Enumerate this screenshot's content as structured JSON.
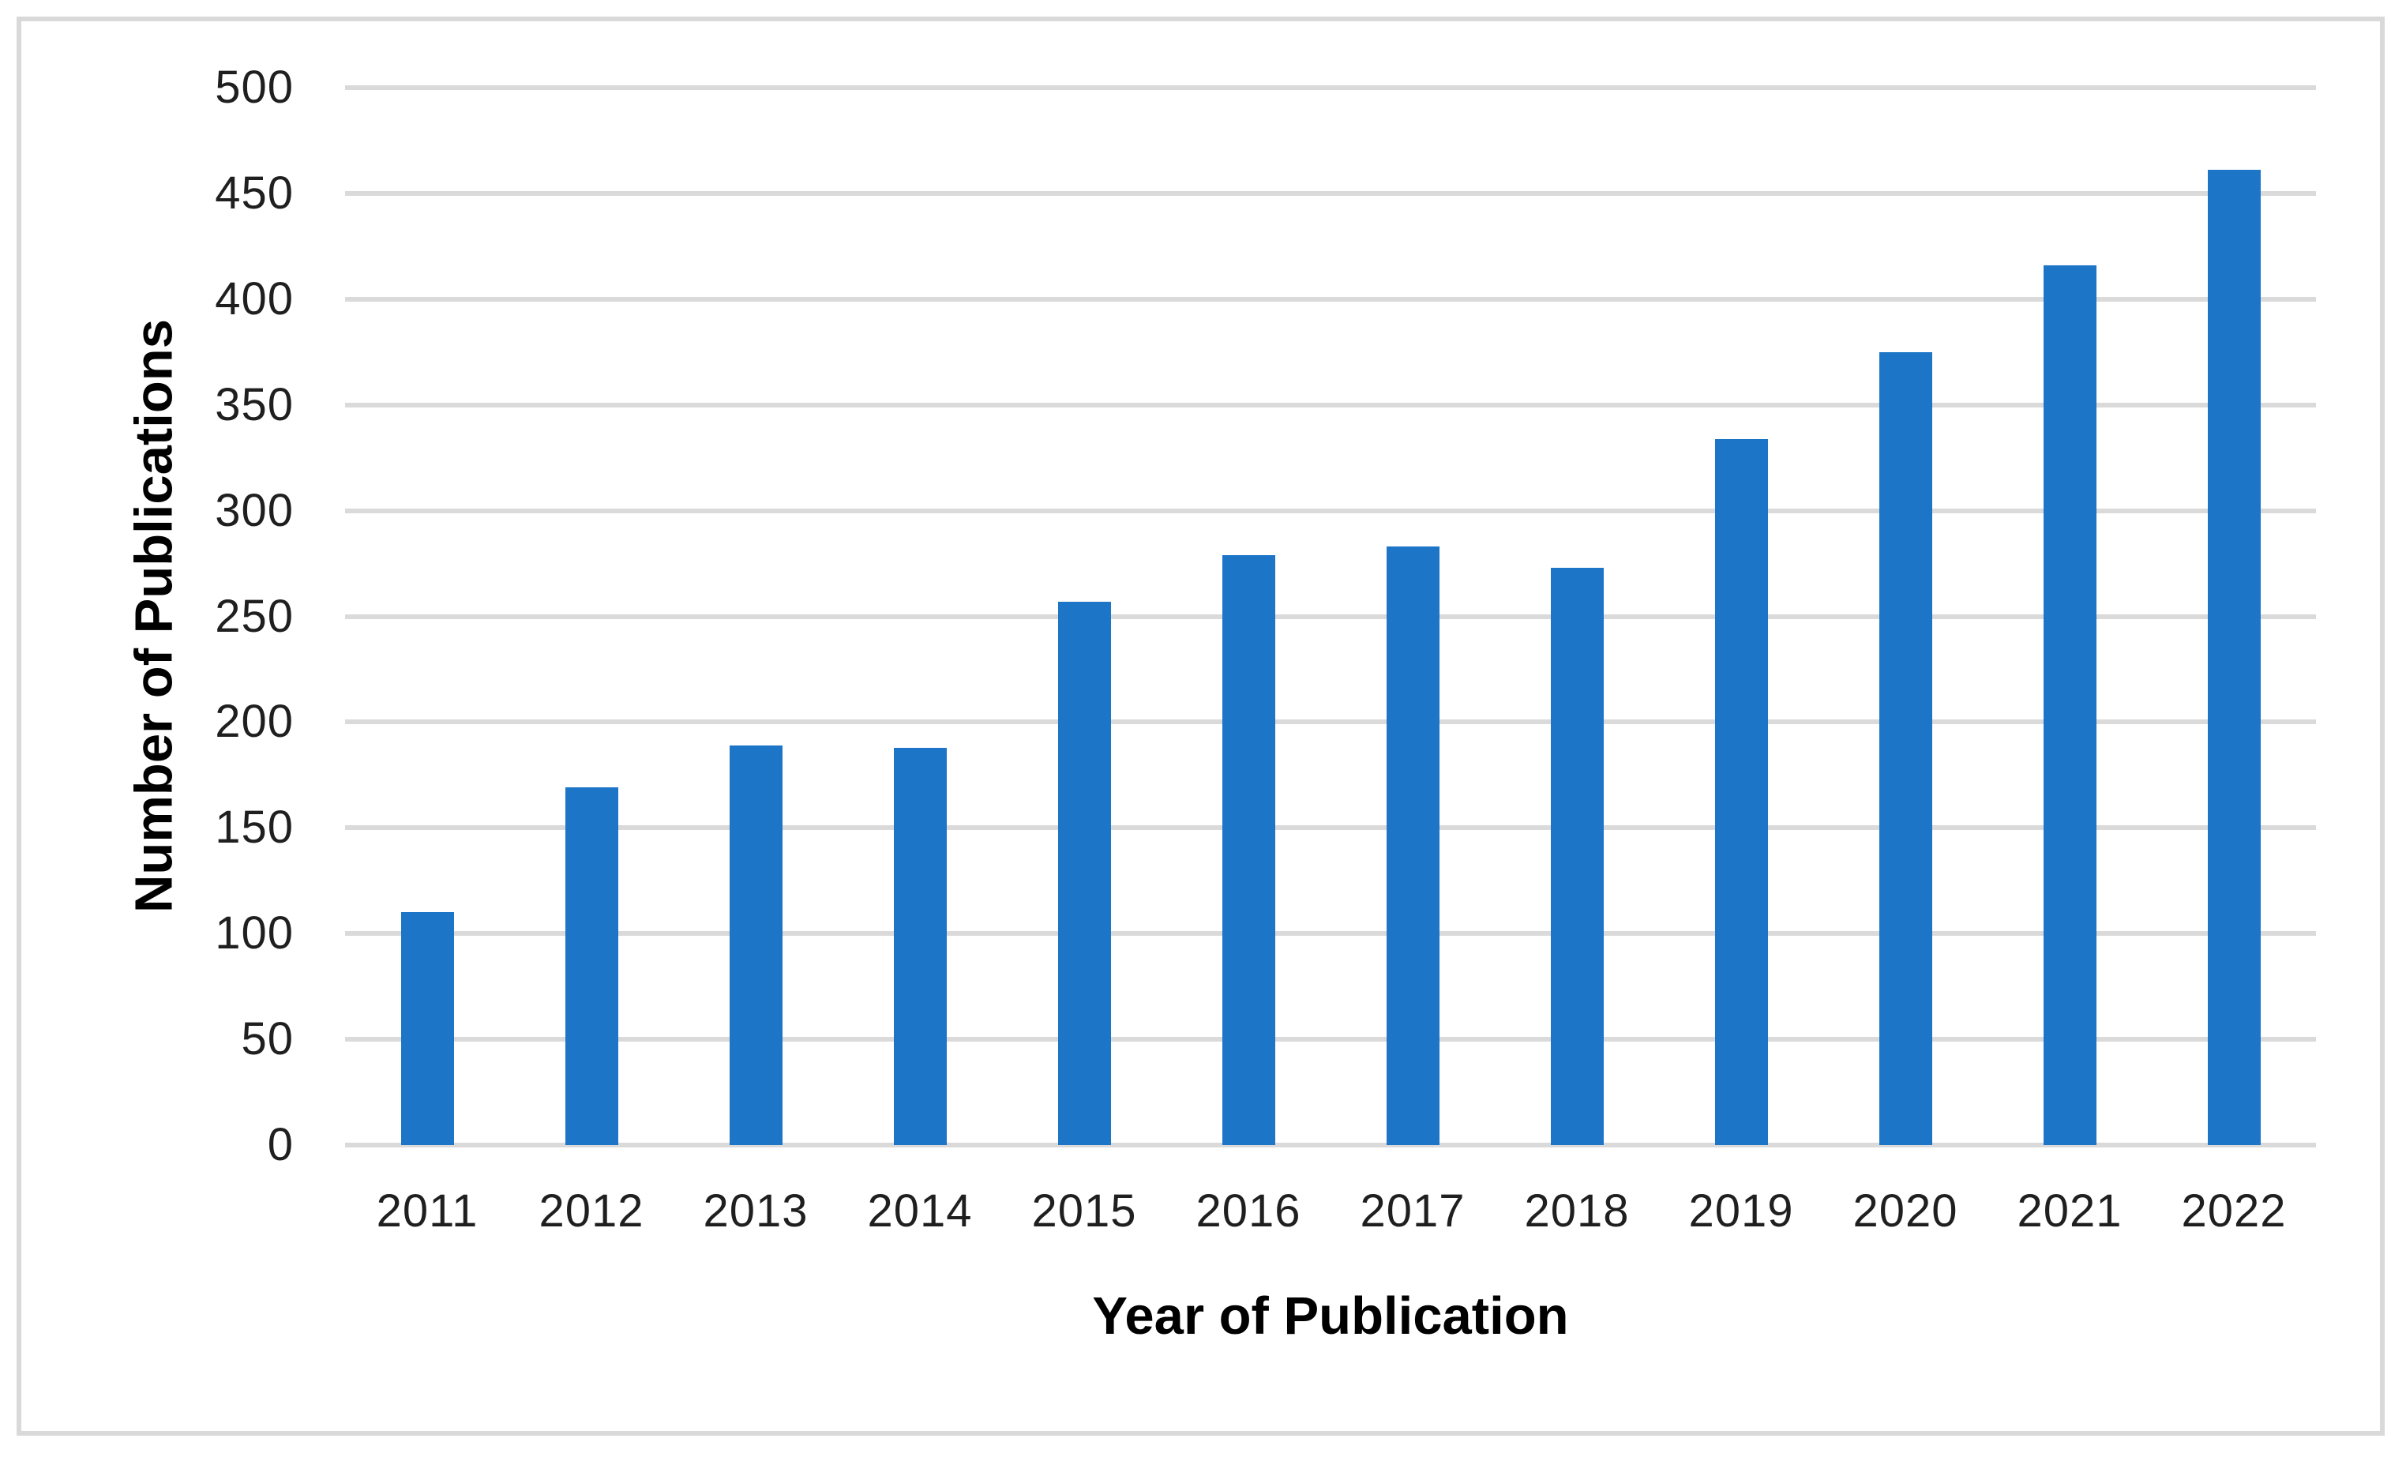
{
  "chart_data": {
    "type": "bar",
    "title": "",
    "categories": [
      "2011",
      "2012",
      "2013",
      "2014",
      "2015",
      "2016",
      "2017",
      "2018",
      "2019",
      "2020",
      "2021",
      "2022"
    ],
    "values": [
      110,
      169,
      189,
      188,
      257,
      279,
      283,
      273,
      334,
      375,
      416,
      461
    ],
    "xlabel": "Year of Publication",
    "ylabel": "Number of Publications",
    "ylim": [
      0,
      500
    ],
    "y_ticks": [
      0,
      50,
      100,
      150,
      200,
      250,
      300,
      350,
      400,
      450,
      500
    ],
    "grid": "horizontal",
    "legend": "none",
    "colors": {
      "bar_fill": "#1C75C7",
      "gridline": "#DADADA",
      "frame": "#D9D9D9",
      "tick_text": "#1F1F1F",
      "title_text": "#000000"
    }
  }
}
